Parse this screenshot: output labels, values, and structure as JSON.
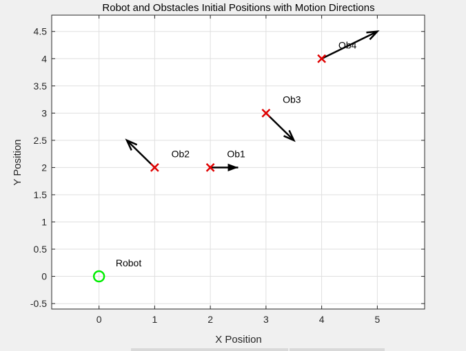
{
  "chart_data": {
    "type": "scatter",
    "title": "Robot and Obstacles Initial Positions with Motion Directions",
    "xlabel": "X Position",
    "ylabel": "Y Position",
    "xlim": [
      -0.85,
      5.85
    ],
    "ylim": [
      -0.6,
      4.8
    ],
    "xticks": [
      0,
      1,
      2,
      3,
      4,
      5
    ],
    "yticks": [
      -0.5,
      0,
      0.5,
      1,
      1.5,
      2,
      2.5,
      3,
      3.5,
      4,
      4.5
    ],
    "xtick_labels": [
      "0",
      "1",
      "2",
      "3",
      "4",
      "5"
    ],
    "ytick_labels": [
      "-0.5",
      "0",
      "0.5",
      "1",
      "1.5",
      "2",
      "2.5",
      "3",
      "3.5",
      "4",
      "4.5"
    ],
    "grid": true,
    "robot": {
      "name": "Robot",
      "x": 0,
      "y": 0,
      "marker": "circle",
      "color": "#00ee00"
    },
    "obstacles": [
      {
        "name": "Ob1",
        "x": 2,
        "y": 2,
        "dx": 0.5,
        "dy": 0
      },
      {
        "name": "Ob2",
        "x": 1,
        "y": 2,
        "dx": -0.5,
        "dy": 0.5
      },
      {
        "name": "Ob3",
        "x": 3,
        "y": 3,
        "dx": 0.5,
        "dy": -0.5
      },
      {
        "name": "Ob4",
        "x": 4,
        "y": 4,
        "dx": 1,
        "dy": 0.5
      }
    ],
    "obstacle_color": "#e00000",
    "arrow_color": "#000000"
  }
}
